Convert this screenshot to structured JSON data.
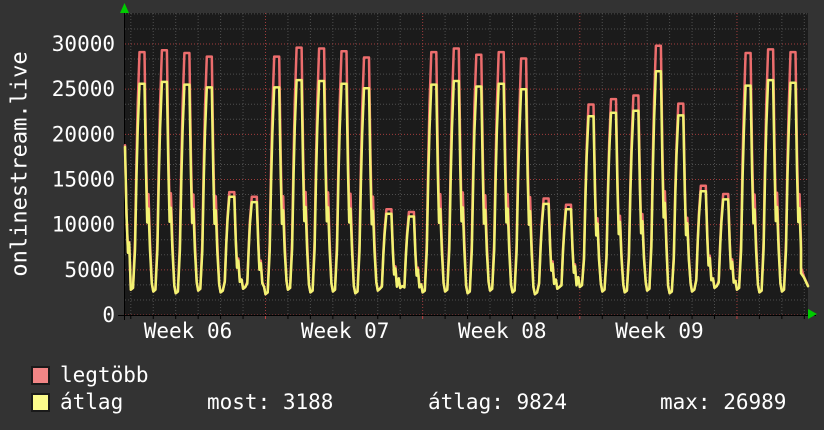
{
  "window": {
    "background": "#333333"
  },
  "chart": {
    "title": "onlinestream.live",
    "canvas_bg": "#1b1b1b",
    "grid_minor_color": "#4e4e4e",
    "grid_major_color": "#a03c3c",
    "axis_color": "#000000",
    "arrow_color": "#00cc00",
    "text_color": "#ffffff"
  },
  "chart_data": {
    "type": "line",
    "title": "onlinestream.live",
    "x_tick_labels": [
      "Week 06",
      "Week 07",
      "Week 08",
      "Week 09"
    ],
    "y_tick_values": [
      0,
      5000,
      10000,
      15000,
      20000,
      25000,
      30000
    ],
    "ylim": [
      0,
      33400
    ],
    "y_major_step": 5000,
    "y_minor_divisions": 3,
    "days_per_week": 7,
    "legend_position": "bottom-left",
    "grid": "dotted",
    "series": [
      {
        "name": "legtöbb",
        "color": "#ec6d6d",
        "lead_in_value": 18800,
        "end_value": 3250,
        "daily_peaks": [
          29100,
          29300,
          29000,
          28600,
          13600,
          13100,
          28600,
          29600,
          29500,
          29200,
          28500,
          11700,
          11400,
          29100,
          29500,
          28800,
          29100,
          28400,
          12900,
          12200,
          23300,
          23900,
          24300,
          29800,
          23400,
          14300,
          13400,
          29000,
          29400,
          29100
        ]
      },
      {
        "name": "átlag",
        "color": "#f2f272",
        "lead_in_value": 18600,
        "end_value": 3188,
        "daily_peaks": [
          25600,
          25800,
          25500,
          25200,
          13100,
          12500,
          25200,
          26000,
          25900,
          25600,
          25100,
          11200,
          10900,
          25500,
          25900,
          25300,
          25600,
          25000,
          12300,
          11700,
          22000,
          22400,
          22600,
          26989,
          22100,
          13700,
          12800,
          25400,
          26000,
          25700
        ]
      }
    ],
    "daily_valleys": [
      2800,
      2600,
      2400,
      2700,
      2500,
      2900,
      2300,
      2800,
      2500,
      2600,
      2400,
      2700,
      3000,
      2500,
      2600,
      2400,
      2700,
      2500,
      2300,
      2900,
      3100,
      2600,
      2500,
      2700,
      2400,
      2600,
      3000,
      2800,
      2500,
      2600
    ]
  },
  "legend": {
    "items": [
      {
        "label": "legtöbb",
        "color": "#f18585"
      },
      {
        "label": "átlag",
        "color": "#fbfb8b"
      }
    ],
    "stats": [
      {
        "text": "most: 3188"
      },
      {
        "text": "átlag: 9824"
      },
      {
        "text": "max: 26989"
      }
    ]
  }
}
